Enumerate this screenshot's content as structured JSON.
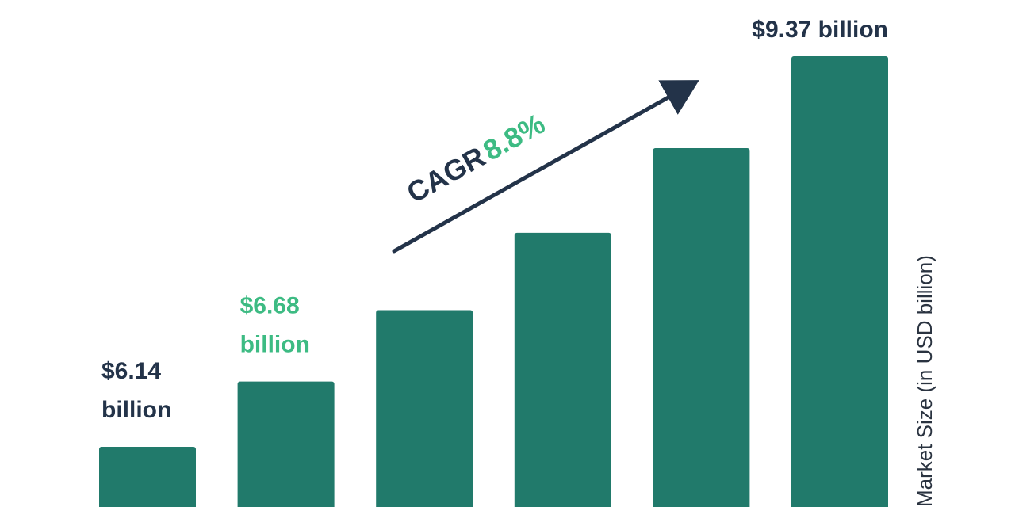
{
  "colors": {
    "bar": "#217a6b",
    "dark_text": "#233349",
    "accent_green": "#3dbb83",
    "axis_text": "#2a3340"
  },
  "chart_data": {
    "type": "bar",
    "categories": [
      "",
      "",
      "",
      "",
      "",
      ""
    ],
    "values": [
      6.14,
      6.68,
      7.27,
      7.91,
      8.61,
      9.37
    ],
    "ylabel": "Market Size (in USD billion)",
    "data_labels": [
      {
        "index": 0,
        "line1": "$6.14",
        "line2": "billion",
        "color": "#233349"
      },
      {
        "index": 1,
        "line1": "$6.68",
        "line2": "billion",
        "color": "#3dbb83"
      },
      {
        "index": 5,
        "line1": "$9.37 billion",
        "line2": "",
        "color": "#233349"
      }
    ],
    "annotation": {
      "prefix": "CAGR",
      "value": "8.8%"
    }
  }
}
